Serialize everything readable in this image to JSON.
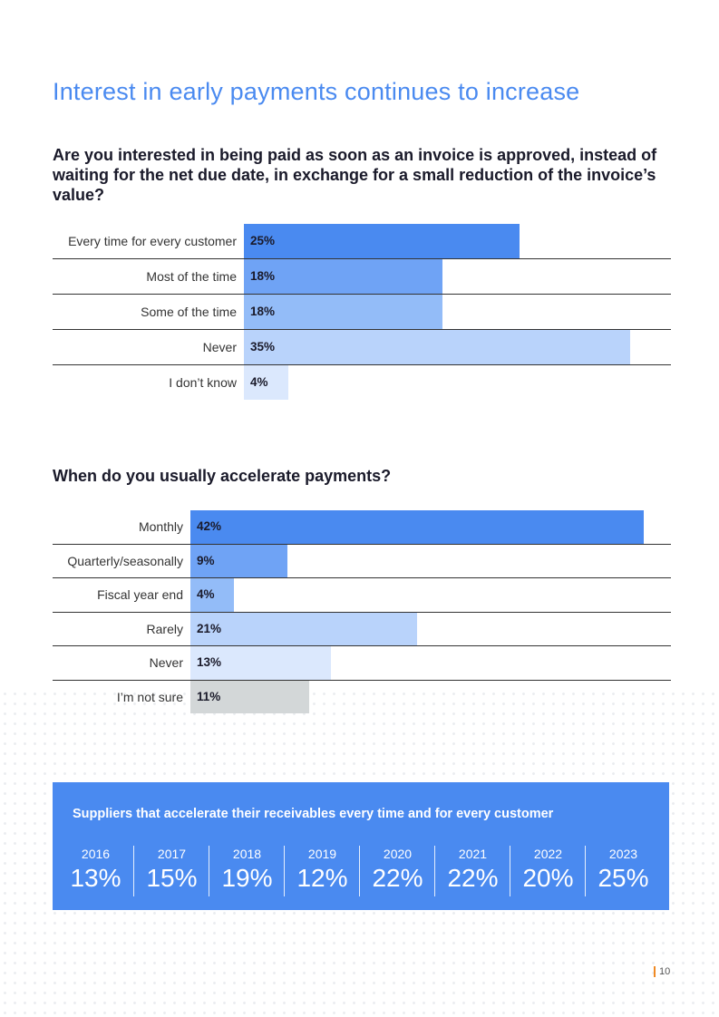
{
  "page": {
    "title": "Interest in early payments continues to increase",
    "page_number": "10"
  },
  "chart_data": [
    {
      "type": "bar",
      "orientation": "horizontal",
      "title": "Are you interested in being paid as soon as an invoice is approved, instead of waiting for the net due date, in exchange for a small reduction of the invoice’s value?",
      "categories": [
        "Every time for every customer",
        "Most of the time",
        "Some of the time",
        "Never",
        "I don’t know"
      ],
      "values": [
        25,
        18,
        18,
        35,
        4
      ],
      "labels": [
        "25%",
        "18%",
        "18%",
        "35%",
        "4%"
      ],
      "colors": [
        "#4a8af0",
        "#6fa3f5",
        "#93bcf8",
        "#b9d3fb",
        "#dbe8fd"
      ],
      "xlim": [
        0,
        35
      ]
    },
    {
      "type": "bar",
      "orientation": "horizontal",
      "title": "When do you usually accelerate payments?",
      "categories": [
        "Monthly",
        "Quarterly/seasonally",
        "Fiscal year end",
        "Rarely",
        "Never",
        "I’m not sure"
      ],
      "values": [
        42,
        9,
        4,
        21,
        13,
        11
      ],
      "labels": [
        "42%",
        "9%",
        "4%",
        "21%",
        "13%",
        "11%"
      ],
      "colors": [
        "#4a8af0",
        "#6fa3f5",
        "#93bcf8",
        "#b9d3fb",
        "#dbe8fd",
        "#d3d7d8"
      ],
      "xlim": [
        0,
        42
      ]
    },
    {
      "type": "table",
      "title": "Suppliers that accelerate their receivables every time and for every customer",
      "columns": [
        "2016",
        "2017",
        "2018",
        "2019",
        "2020",
        "2021",
        "2022",
        "2023"
      ],
      "values": [
        "13%",
        "15%",
        "19%",
        "12%",
        "22%",
        "22%",
        "20%",
        "25%"
      ]
    }
  ]
}
